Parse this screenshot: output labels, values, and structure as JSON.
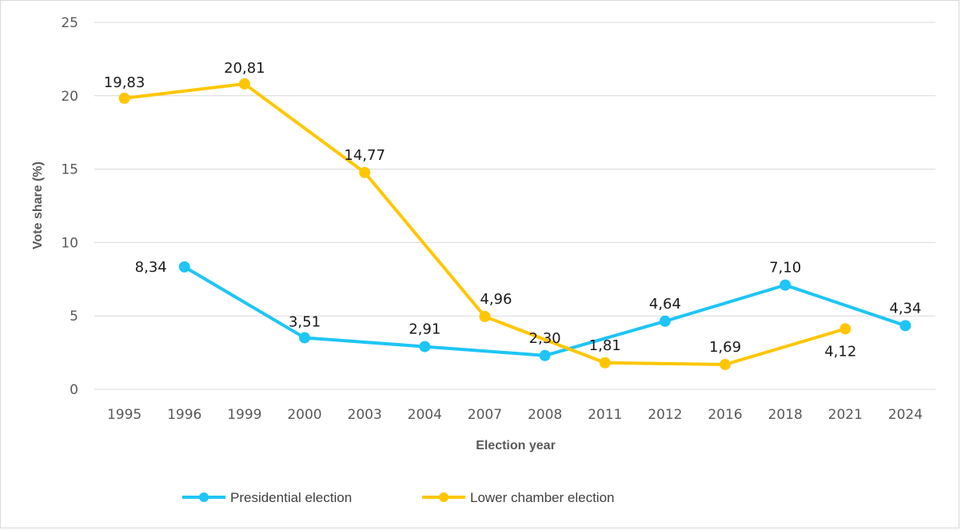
{
  "chart_data": {
    "type": "line",
    "title": "",
    "xlabel": "Election year",
    "ylabel": "Vote share (%)",
    "ylim": [
      0,
      25
    ],
    "yticks": [
      "0",
      "5",
      "10",
      "15",
      "20",
      "25"
    ],
    "grid": true,
    "legend_position": "bottom",
    "categories": [
      "1995",
      "1996",
      "1999",
      "2000",
      "2003",
      "2004",
      "2007",
      "2008",
      "2011",
      "2012",
      "2016",
      "2018",
      "2021",
      "2024"
    ],
    "series": [
      {
        "name": "Presidential election",
        "color": "#1EC5F5",
        "values": [
          null,
          8.34,
          null,
          3.51,
          null,
          2.91,
          null,
          2.3,
          null,
          4.64,
          null,
          7.1,
          null,
          4.34
        ],
        "labels": [
          null,
          "8,34",
          null,
          "3,51",
          null,
          "2,91",
          null,
          "2,30",
          null,
          "4,64",
          null,
          "7,10",
          null,
          "4,34"
        ]
      },
      {
        "name": "Lower chamber election",
        "color": "#FFC600",
        "values": [
          19.83,
          null,
          20.81,
          null,
          14.77,
          null,
          4.96,
          null,
          1.81,
          null,
          1.69,
          null,
          4.12,
          null
        ],
        "labels": [
          "19,83",
          null,
          "20,81",
          null,
          "14,77",
          null,
          "4,96",
          null,
          "1,81",
          null,
          "1,69",
          null,
          "4,12",
          null
        ]
      }
    ]
  }
}
